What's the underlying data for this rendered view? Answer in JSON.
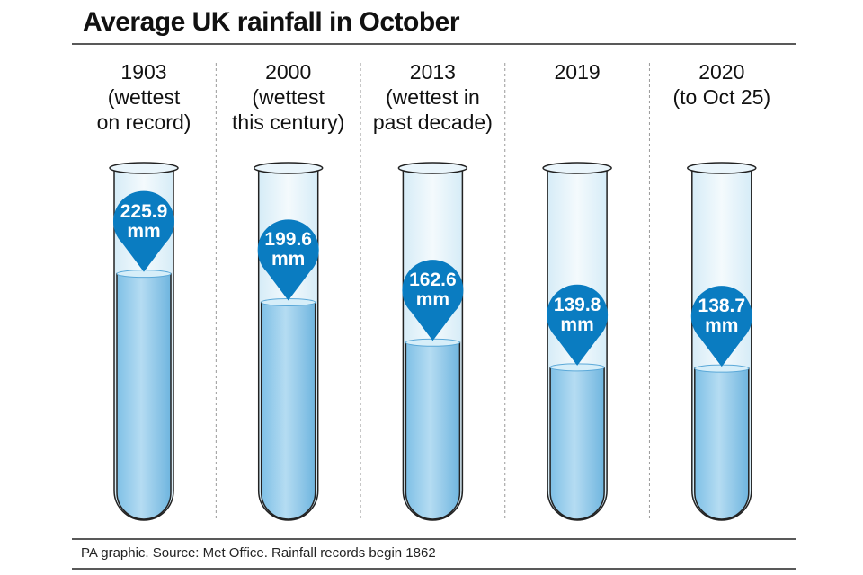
{
  "chart_data": {
    "type": "tubes",
    "title": "Average UK rainfall in October",
    "categories": [
      "1903\n(wettest\non record)",
      "2000\n(wettest\nthis century)",
      "2013\n(wettest in\npast decade)",
      "2019",
      "2020\n(to Oct 25)"
    ],
    "values": [
      225.9,
      199.6,
      162.6,
      139.8,
      138.7
    ],
    "value_labels": [
      "225.9 mm",
      "199.6 mm",
      "162.6 mm",
      "139.8 mm",
      "138.7 mm"
    ],
    "color": "#0a7cc1",
    "source": "PA graphic. Source: Met Office. Rainfall records begin 1862"
  }
}
